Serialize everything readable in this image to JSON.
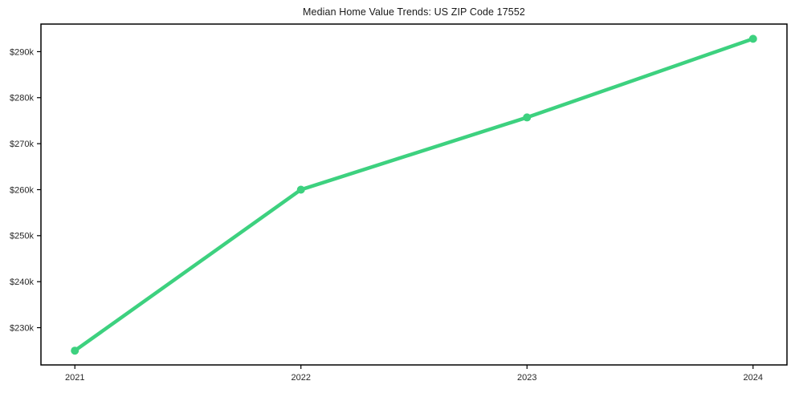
{
  "chart_data": {
    "type": "line",
    "title": "Median Home Value Trends: US ZIP Code 17552",
    "xlabel": "",
    "ylabel": "",
    "categories": [
      "2021",
      "2022",
      "2023",
      "2024"
    ],
    "x": [
      2021,
      2022,
      2023,
      2024
    ],
    "series": [
      {
        "name": "Median Home Value",
        "values": [
          225000,
          260000,
          275700,
          292800
        ]
      }
    ],
    "y_ticks": [
      {
        "value": 230000,
        "label": "$230k"
      },
      {
        "value": 240000,
        "label": "$240k"
      },
      {
        "value": 250000,
        "label": "$250k"
      },
      {
        "value": 260000,
        "label": "$260k"
      },
      {
        "value": 270000,
        "label": "$270k"
      },
      {
        "value": 280000,
        "label": "$280k"
      },
      {
        "value": 290000,
        "label": "$290k"
      }
    ],
    "xlim": [
      2020.85,
      2024.15
    ],
    "ylim": [
      221900,
      296000
    ],
    "grid": false,
    "legend_position": "none",
    "line_color": "#3dd17f",
    "marker": "circle",
    "marker_color": "#3dd17f",
    "axis_color": "#000000",
    "text_color": "#262626",
    "background_color": "#ffffff"
  }
}
